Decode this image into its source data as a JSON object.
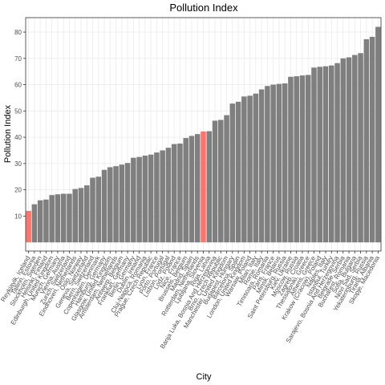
{
  "chart_data": {
    "type": "bar",
    "title": "Pollution Index",
    "x_label": "City",
    "y_label": "Pollution Index",
    "categories": [
      "Reykjavik, Iceland",
      "Tallinn, Estonia",
      "Stockholm, Sweden",
      "Helsinki, Finland",
      "Edinburgh, United Kingdom",
      "Munich, Germany",
      "Vienna, Austria",
      "Zurich, Switzerland",
      "Eindhoven, Netherlands",
      "Oslo, Norway",
      "Geneva, Switzerland",
      "Bern, Switzerland",
      "Copenhagen, Denmark",
      "Hamburg, Germany",
      "Glasgow, United Kingdom",
      "Amsterdam, Netherlands",
      "Antwerp, Belgium",
      "Frankfurt, Germany",
      "Berlin, Germany",
      "Dublin, Ireland",
      "Cluj-Napoca, Romania",
      "Prague, Czech Republic",
      "Lyon, France",
      "Porto, Portugal",
      "Lisbon, Portugal",
      "Lodz, Poland",
      "Nice, France",
      "Brussels, Belgium",
      "Madrid, Spain",
      "Rotterdam, Netherlands",
      "Ljubljana, Slovenia",
      "Riga, Latvia",
      "Banja Luka, Bosnia And Herzegovina",
      "Brno, Czech Republic",
      "Manchester, United Kingdom",
      "Budapest, Hungary",
      "Barcelona, Spain",
      "London, United Kingdom",
      "Warsaw, Poland",
      "Milan, Italy",
      "Rome, Italy",
      "Timisoara, Romania",
      "Paris, France",
      "Minsk, Belarus",
      "Saint Petersburg, Russia",
      "Kiev, Ukraine",
      "Moscow, Russia",
      "Zagreb, Croatia",
      "Thessaloniki, Greece",
      "Athens, Greece",
      "Krakow (Cracow), Poland",
      "Naples, Italy",
      "Istanbul, Turkey",
      "Sarajevo, Bosnia And Herzegovina",
      "Belgrade, Serbia",
      "Bucharest, Romania",
      "Sofia, Bulgaria",
      "Novi Sad, Serbia",
      "Yekaterinburg, Russia",
      "Tirana, Albania",
      "Skopje, Macedonia"
    ],
    "values": [
      12,
      14.5,
      16,
      16.3,
      18,
      18.3,
      18.5,
      18.5,
      20.3,
      20.7,
      21.7,
      24.6,
      25,
      27.6,
      28.6,
      29,
      29.6,
      30.2,
      32.2,
      32.5,
      33,
      33.4,
      34.2,
      35,
      36,
      37.4,
      37.6,
      39.7,
      40.5,
      41.2,
      42.2,
      42.3,
      46.3,
      46.6,
      48.4,
      52.8,
      53.5,
      55.5,
      55.8,
      56.6,
      58.2,
      59.5,
      60,
      60.3,
      60.5,
      63,
      63.2,
      63.5,
      63.7,
      66.5,
      66.8,
      67,
      67.3,
      68.2,
      70,
      70.4,
      71.3,
      72,
      77.3,
      78.2,
      82
    ],
    "colors": [
      "#f8766d",
      "#7f7f7f",
      "#7f7f7f",
      "#7f7f7f",
      "#7f7f7f",
      "#7f7f7f",
      "#7f7f7f",
      "#7f7f7f",
      "#7f7f7f",
      "#7f7f7f",
      "#7f7f7f",
      "#7f7f7f",
      "#7f7f7f",
      "#7f7f7f",
      "#7f7f7f",
      "#7f7f7f",
      "#7f7f7f",
      "#7f7f7f",
      "#7f7f7f",
      "#7f7f7f",
      "#7f7f7f",
      "#7f7f7f",
      "#7f7f7f",
      "#7f7f7f",
      "#7f7f7f",
      "#7f7f7f",
      "#7f7f7f",
      "#7f7f7f",
      "#7f7f7f",
      "#7f7f7f",
      "#f8766d",
      "#7f7f7f",
      "#7f7f7f",
      "#7f7f7f",
      "#7f7f7f",
      "#7f7f7f",
      "#7f7f7f",
      "#7f7f7f",
      "#7f7f7f",
      "#7f7f7f",
      "#7f7f7f",
      "#7f7f7f",
      "#7f7f7f",
      "#7f7f7f",
      "#7f7f7f",
      "#7f7f7f",
      "#7f7f7f",
      "#7f7f7f",
      "#7f7f7f",
      "#7f7f7f",
      "#7f7f7f",
      "#7f7f7f",
      "#7f7f7f",
      "#7f7f7f",
      "#7f7f7f",
      "#7f7f7f",
      "#7f7f7f",
      "#7f7f7f",
      "#7f7f7f",
      "#7f7f7f",
      "#7f7f7f"
    ],
    "ylim": [
      -3.3,
      85.5
    ],
    "yticks": [
      10,
      20,
      30,
      40,
      50,
      60,
      70,
      80
    ],
    "grid": true
  }
}
